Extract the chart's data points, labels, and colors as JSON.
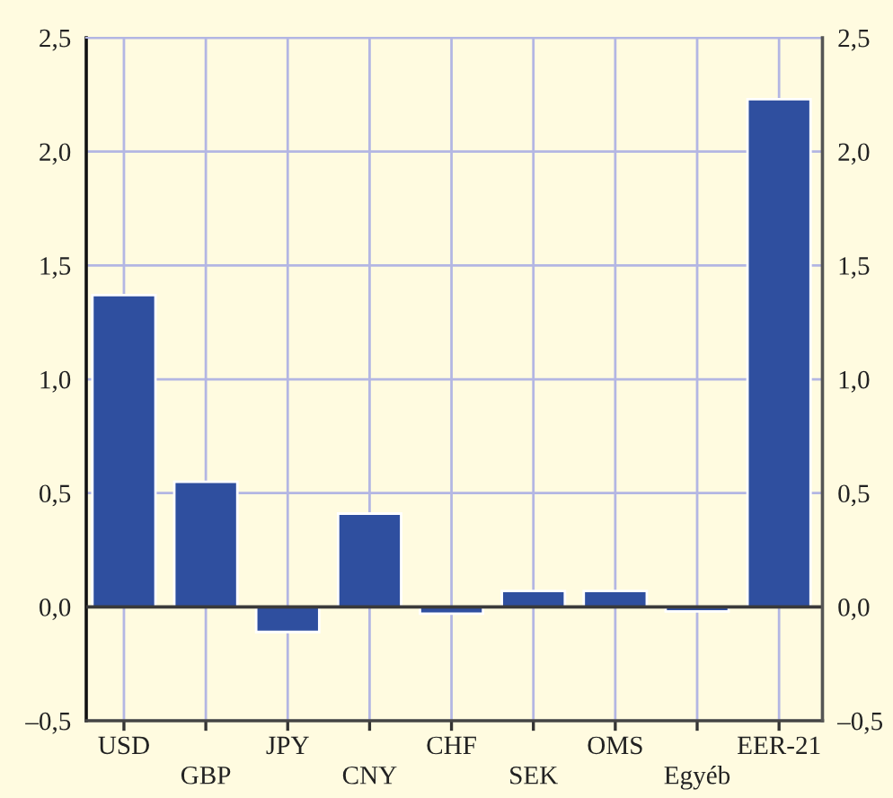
{
  "chart_data": {
    "type": "bar",
    "categories": [
      "USD",
      "GBP",
      "JPY",
      "CNY",
      "CHF",
      "SEK",
      "OMS",
      "Egyéb",
      "EER-21"
    ],
    "values": [
      1.37,
      0.55,
      -0.11,
      0.41,
      -0.03,
      0.07,
      0.07,
      -0.02,
      2.23
    ],
    "color": "#2f4f9f",
    "ylim": [
      -0.5,
      2.5
    ],
    "yticks": [
      {
        "value": -0.5,
        "label": "–0,5"
      },
      {
        "value": 0,
        "label": "0,0"
      },
      {
        "value": 0.5,
        "label": "0,5"
      },
      {
        "value": 1.0,
        "label": "1,0"
      },
      {
        "value": 1.5,
        "label": "1,5"
      },
      {
        "value": 2.0,
        "label": "2,0"
      },
      {
        "value": 2.5,
        "label": "2,5"
      }
    ],
    "y2lim": [
      -0.5,
      2.5
    ],
    "y2ticks": [
      {
        "value": -0.5,
        "label": "–0,5"
      },
      {
        "value": 0,
        "label": "0,0"
      },
      {
        "value": 0.5,
        "label": "0,5"
      },
      {
        "value": 1.0,
        "label": "1,0"
      },
      {
        "value": 1.5,
        "label": "1,5"
      },
      {
        "value": 2.0,
        "label": "2,0"
      },
      {
        "value": 2.5,
        "label": "2,5"
      }
    ],
    "grid": true,
    "ref_lines": [
      {
        "axis": "y",
        "value": 0,
        "color": "#3a3a3a"
      }
    ]
  }
}
